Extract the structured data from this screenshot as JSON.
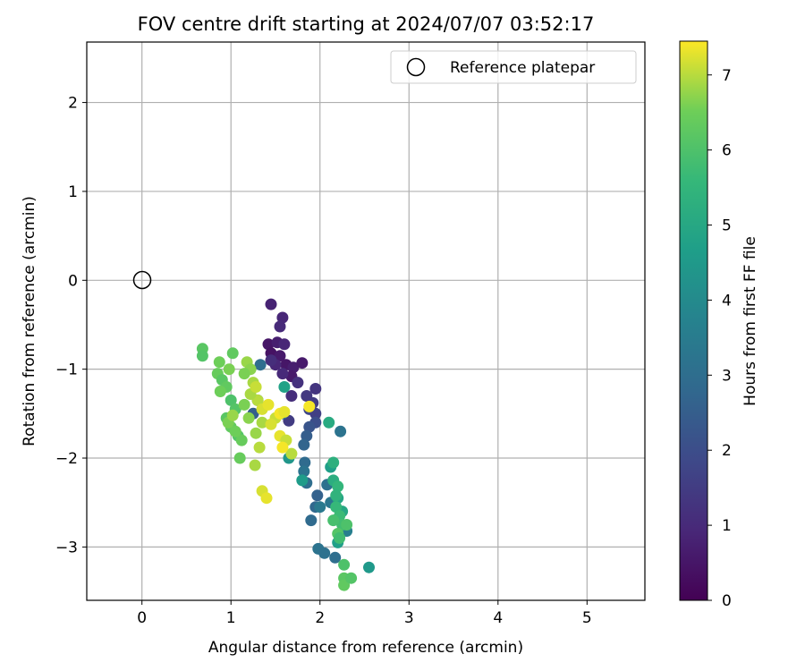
{
  "chart_data": {
    "type": "scatter",
    "title": "FOV centre drift starting at 2024/07/07 03:52:17",
    "xlabel": "Angular distance from reference (arcmin)",
    "ylabel": "Rotation from reference (arcmin)",
    "colorbar_label": "Hours from first FF file",
    "xlim": [
      -0.62,
      5.65
    ],
    "ylim": [
      -3.6,
      2.68
    ],
    "x_ticks": [
      0,
      1,
      2,
      3,
      4,
      5
    ],
    "y_ticks": [
      -3,
      -2,
      -1,
      0,
      1,
      2
    ],
    "colorbar_range": [
      0,
      7.45
    ],
    "colorbar_ticks": [
      0,
      1,
      2,
      3,
      4,
      5,
      6,
      7
    ],
    "colormap": "viridis",
    "grid": true,
    "legend": {
      "placement": "top-right",
      "entries": [
        "Reference platepar"
      ]
    },
    "reference_point": {
      "x": 0,
      "y": 0
    },
    "points": [
      [
        1.45,
        -0.27,
        0.8
      ],
      [
        1.58,
        -0.42,
        0.9
      ],
      [
        1.55,
        -0.52,
        1.0
      ],
      [
        1.42,
        -0.72,
        0.5
      ],
      [
        1.52,
        -0.7,
        0.7
      ],
      [
        1.6,
        -0.72,
        0.9
      ],
      [
        1.45,
        -0.82,
        0.4
      ],
      [
        1.55,
        -0.85,
        0.6
      ],
      [
        1.62,
        -0.95,
        0.5
      ],
      [
        1.7,
        -0.98,
        0.7
      ],
      [
        1.68,
        -1.08,
        0.6
      ],
      [
        1.58,
        -1.05,
        1.0
      ],
      [
        1.5,
        -0.95,
        0.9
      ],
      [
        1.45,
        -0.9,
        1.1
      ],
      [
        1.8,
        -0.93,
        0.6
      ],
      [
        1.75,
        -1.15,
        1.2
      ],
      [
        1.68,
        -1.3,
        1.1
      ],
      [
        1.95,
        -1.22,
        1.3
      ],
      [
        1.92,
        -1.38,
        1.5
      ],
      [
        1.88,
        -1.45,
        1.8
      ],
      [
        1.95,
        -1.5,
        1.6
      ],
      [
        1.85,
        -1.3,
        1.4
      ],
      [
        1.65,
        -1.58,
        1.5
      ],
      [
        1.95,
        -1.6,
        2.0
      ],
      [
        1.88,
        -1.65,
        2.2
      ],
      [
        1.85,
        -1.75,
        2.5
      ],
      [
        1.82,
        -1.85,
        2.7
      ],
      [
        1.83,
        -2.05,
        2.9
      ],
      [
        1.82,
        -2.15,
        3.2
      ],
      [
        1.85,
        -2.28,
        3.0
      ],
      [
        1.97,
        -2.42,
        2.6
      ],
      [
        1.95,
        -2.55,
        2.8
      ],
      [
        1.9,
        -2.7,
        2.9
      ],
      [
        2.0,
        -2.55,
        3.4
      ],
      [
        2.08,
        -2.3,
        3.1
      ],
      [
        2.12,
        -2.5,
        3.3
      ],
      [
        1.98,
        -3.02,
        3.2
      ],
      [
        2.05,
        -3.07,
        3.1
      ],
      [
        2.17,
        -3.12,
        3.0
      ],
      [
        2.23,
        -1.7,
        3.2
      ],
      [
        1.33,
        -0.95,
        3.0
      ],
      [
        1.25,
        -1.5,
        2.5
      ],
      [
        1.3,
        -1.35,
        2.7
      ],
      [
        1.58,
        -1.5,
        3.0
      ],
      [
        2.3,
        -2.82,
        3.6
      ],
      [
        1.6,
        -1.2,
        4.8
      ],
      [
        1.8,
        -2.25,
        4.6
      ],
      [
        1.65,
        -2.0,
        4.4
      ],
      [
        2.12,
        -2.1,
        4.7
      ],
      [
        2.2,
        -2.45,
        4.9
      ],
      [
        2.55,
        -3.23,
        4.5
      ],
      [
        2.2,
        -2.95,
        4.7
      ],
      [
        2.25,
        -2.6,
        5.0
      ],
      [
        2.15,
        -2.05,
        5.3
      ],
      [
        2.15,
        -2.25,
        5.2
      ],
      [
        2.2,
        -2.32,
        5.5
      ],
      [
        2.1,
        -1.6,
        5.1
      ],
      [
        2.18,
        -2.55,
        5.6
      ],
      [
        2.22,
        -2.65,
        5.7
      ],
      [
        2.25,
        -2.75,
        5.8
      ],
      [
        2.3,
        -2.75,
        6.0
      ],
      [
        2.15,
        -2.7,
        5.9
      ],
      [
        2.2,
        -2.85,
        6.1
      ],
      [
        2.27,
        -3.2,
        6.0
      ],
      [
        2.27,
        -3.35,
        6.2
      ],
      [
        2.27,
        -3.43,
        6.3
      ],
      [
        2.35,
        -3.35,
        6.1
      ],
      [
        2.22,
        -2.9,
        5.8
      ],
      [
        2.18,
        -2.42,
        5.4
      ],
      [
        0.68,
        -0.77,
        6.2
      ],
      [
        0.68,
        -0.85,
        6.1
      ],
      [
        1.02,
        -0.82,
        6.3
      ],
      [
        0.87,
        -0.92,
        6.5
      ],
      [
        0.98,
        -1.0,
        6.6
      ],
      [
        0.85,
        -1.05,
        6.4
      ],
      [
        0.9,
        -1.12,
        6.2
      ],
      [
        0.95,
        -1.2,
        6.3
      ],
      [
        0.88,
        -1.25,
        6.5
      ],
      [
        1.18,
        -0.92,
        6.8
      ],
      [
        1.22,
        -1.0,
        6.7
      ],
      [
        1.15,
        -1.05,
        6.6
      ],
      [
        1.25,
        -1.15,
        6.9
      ],
      [
        1.0,
        -1.35,
        6.0
      ],
      [
        1.05,
        -1.45,
        6.1
      ],
      [
        0.95,
        -1.55,
        6.2
      ],
      [
        1.0,
        -1.65,
        6.3
      ],
      [
        1.08,
        -1.75,
        6.1
      ],
      [
        1.12,
        -1.8,
        6.4
      ],
      [
        1.05,
        -1.7,
        6.5
      ],
      [
        1.2,
        -1.55,
        6.7
      ],
      [
        1.15,
        -1.4,
        6.6
      ],
      [
        1.3,
        -1.35,
        7.0
      ],
      [
        1.35,
        -1.45,
        7.2
      ],
      [
        1.42,
        -1.4,
        7.3
      ],
      [
        1.5,
        -1.55,
        7.1
      ],
      [
        1.35,
        -1.6,
        6.9
      ],
      [
        1.28,
        -1.72,
        6.8
      ],
      [
        1.32,
        -1.88,
        7.0
      ],
      [
        1.45,
        -1.62,
        7.2
      ],
      [
        1.55,
        -1.75,
        7.3
      ],
      [
        1.62,
        -1.8,
        7.1
      ],
      [
        1.68,
        -1.95,
        7.0
      ],
      [
        1.58,
        -1.88,
        7.4
      ],
      [
        1.55,
        -1.5,
        7.4
      ],
      [
        1.6,
        -1.48,
        7.3
      ],
      [
        1.88,
        -1.42,
        7.4
      ],
      [
        1.1,
        -2.0,
        6.4
      ],
      [
        1.27,
        -2.08,
        6.9
      ],
      [
        1.35,
        -2.37,
        7.2
      ],
      [
        1.4,
        -2.45,
        7.3
      ],
      [
        0.97,
        -1.6,
        6.6
      ],
      [
        1.02,
        -1.52,
        6.8
      ],
      [
        1.22,
        -1.28,
        6.9
      ],
      [
        1.28,
        -1.2,
        7.1
      ]
    ]
  },
  "legend_label": "Reference platepar"
}
